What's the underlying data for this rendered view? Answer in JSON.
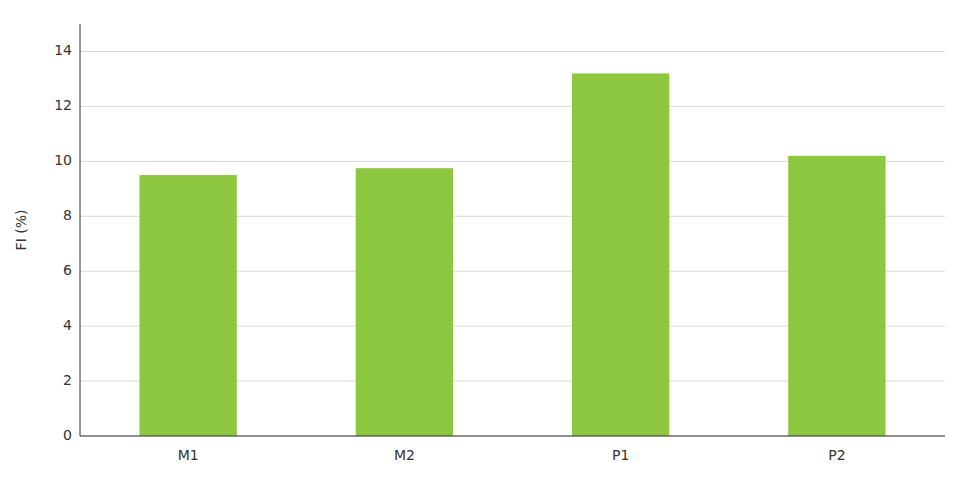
{
  "chart_data": {
    "type": "bar",
    "categories": [
      "M1",
      "M2",
      "P1",
      "P2"
    ],
    "values": [
      9.5,
      9.75,
      13.2,
      10.2
    ],
    "color": "#8dc63f",
    "ylabel": "FI (%)",
    "ylim": [
      0,
      15.0
    ],
    "yticks": [
      0,
      2,
      4,
      6,
      8,
      10,
      12,
      14
    ],
    "grid": true
  }
}
